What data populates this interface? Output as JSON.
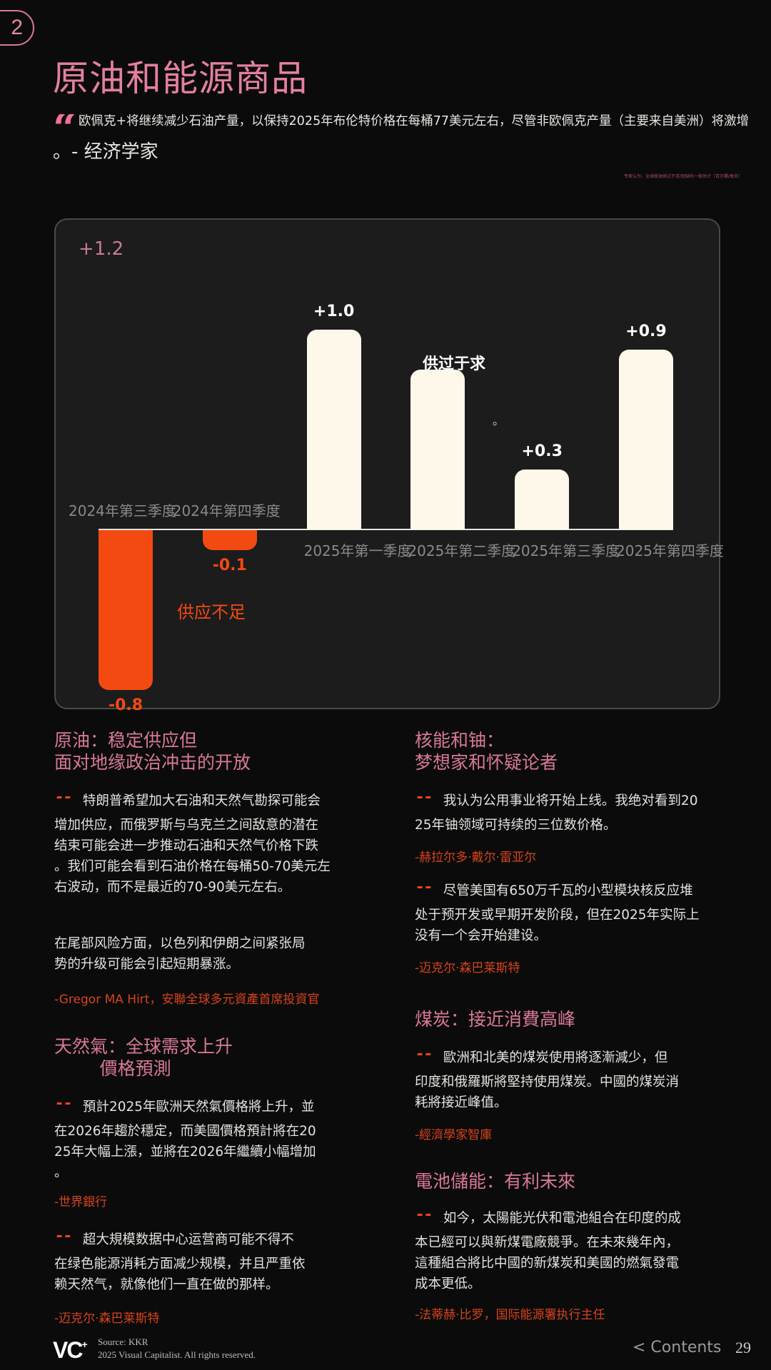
{
  "page_badge": "2",
  "title": "原油和能源商品",
  "top_quote": {
    "icon": "quote-icon",
    "text": "欧佩克+将继续减少石油产量，以保持2025年布伦特价格在每桶77美元左右，尽管非欧佩克产量（主要来自美洲）将激增",
    "tail": "。- 经济学家"
  },
  "chart_note": "专家认为，全球原油供过于求/短缺的一般估计（百万桶/每天）",
  "colors": {
    "accent_pink": "#e47fa3",
    "surplus_bar": "#fdf8e9",
    "deficit_bar": "#f34a12",
    "background": "#0b0b0b",
    "card": "#1c1c1c"
  },
  "chart_data": {
    "type": "bar",
    "categories": [
      "2024年第三季度",
      "2024年第四季度",
      "2025年第一季度",
      "2025年第二季度",
      "2025年第三季度",
      "2025年第四季度"
    ],
    "values": [
      -0.8,
      -0.1,
      1.0,
      0.8,
      0.3,
      0.9
    ],
    "value_labels": [
      "-0.8",
      "-0.1",
      "+1.0",
      "",
      "+0.3",
      "+0.9"
    ],
    "annotations": {
      "top_left_label": "+1.2",
      "surplus": "供过于求",
      "deficit": "供应不足",
      "stray": "。"
    },
    "grid": false,
    "legend": "none"
  },
  "sections": {
    "oil": {
      "heading": "原油：稳定供应但\n面对地缘政治冲击的开放",
      "quote": "特朗普希望加大石油和天然气勘探可能会\n增加供应，而俄罗斯与乌克兰之间敌意的潜在\n结束可能会进一步推动石油和天然气价格下跌\n。我们可能会看到石油价格在每桶50-70美元左\n右波动，而不是最近的70-90美元左右。",
      "para2": "在尾部风险方面，以色列和伊朗之间紧张局\n势的升级可能会引起短期暴涨。",
      "attribution": "-Gregor MA Hirt，安聯全球多元資產首席投資官"
    },
    "gas": {
      "heading": "天然氣：全球需求上升\n        價格預測",
      "quote1": "預計2025年歐洲天然氣價格將上升，並\n在2026年趨於穩定，而美國價格預計將在20\n25年大幅上漲，並將在2026年繼續小幅增加\n。",
      "attribution1": "-世界銀行",
      "quote2": "超大規模数据中心运营商可能不得不\n在绿色能源消耗方面减少规模，并且严重依\n赖天然气，就像他们一直在做的那样。",
      "attribution2": "-迈克尔·森巴莱斯特"
    },
    "nuclear": {
      "heading": "核能和铀：\n梦想家和怀疑论者",
      "quote1": "我认为公用事业将开始上线。我绝对看到20\n25年铀领域可持续的三位数价格。",
      "attribution1": "-赫拉尔多·戴尔·雷亚尔",
      "quote2": "尽管美国有650万千瓦的小型模块核反应堆\n处于预开发或早期开发阶段，但在2025年实际上\n没有一个会开始建设。",
      "attribution2": "-迈克尔·森巴莱斯特"
    },
    "coal": {
      "heading": "煤炭：接近消費高峰",
      "quote": "歐洲和北美的煤炭使用將逐漸減少，但\n印度和俄羅斯將堅持使用煤炭。中國的煤炭消\n耗將接近峰值。",
      "attribution": "-經濟學家智庫"
    },
    "battery": {
      "heading": "電池儲能：有利未來",
      "quote": "如今，太陽能光伏和電池組合在印度的成\n本已經可以與新煤電廠競爭。在未來幾年內，\n這種組合將比中國的新煤炭和美國的燃氣發電\n成本更低。",
      "attribution": "-法蒂赫·比罗，国际能源署执行主任"
    }
  },
  "footer": {
    "logo": "VC+",
    "source": "Source: KKR",
    "copyright": "2025 Visual Capitalist. All rights reserved.",
    "contents_link": "< Contents",
    "page_number": "29"
  }
}
